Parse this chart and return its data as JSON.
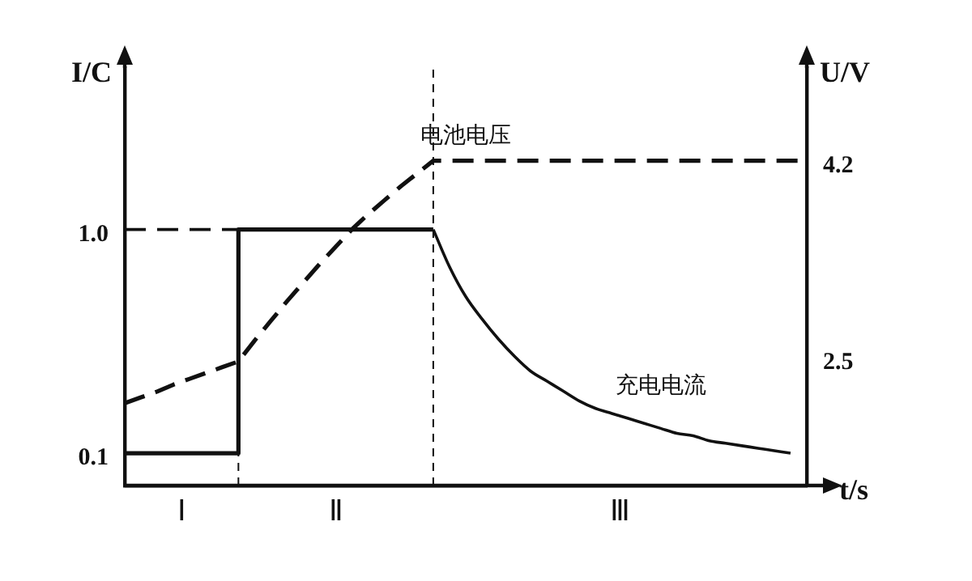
{
  "chart_data": {
    "type": "line",
    "xlabel": "t/s",
    "ylabel": "I/C",
    "y2label": "U/V",
    "categories": [
      null,
      null,
      null,
      null,
      null,
      null,
      null,
      null,
      null,
      null,
      null,
      null,
      null,
      null,
      null,
      null,
      null,
      null,
      null,
      null,
      null,
      null,
      null,
      null,
      null,
      null,
      null,
      null,
      null,
      null,
      null,
      null,
      null,
      null,
      null,
      null,
      null,
      null,
      null,
      null,
      null,
      null,
      null
    ],
    "series": [
      {
        "type": "line",
        "color": "#111111",
        "line_style": "dashed",
        "values": [
          1,
          1,
          1,
          1,
          1,
          1,
          1,
          1,
          null,
          null,
          null,
          null,
          null,
          null,
          null,
          null,
          null,
          null,
          null,
          null,
          null,
          null,
          null,
          null,
          null,
          null,
          null,
          null,
          null,
          null,
          null,
          null,
          null,
          null,
          null,
          null,
          null,
          null,
          null,
          null,
          null,
          null,
          null
        ]
      },
      {
        "type": "step",
        "color": "#111111",
        "line_style": "solid",
        "values": [
          0.1,
          0.1,
          0.1,
          0.1,
          0.1,
          0.1,
          0.1,
          1,
          1,
          1,
          1,
          1,
          1,
          1,
          1,
          1,
          1,
          1,
          1,
          1,
          null,
          null,
          null,
          null,
          null,
          null,
          null,
          null,
          null,
          null,
          null,
          null,
          null,
          null,
          null,
          null,
          null,
          null,
          null,
          null,
          null,
          null,
          null
        ]
      },
      {
        "name": "充电电流",
        "type": "line",
        "color": "#111111",
        "line_style": "solid",
        "values": [
          null,
          null,
          null,
          null,
          null,
          null,
          null,
          null,
          null,
          null,
          null,
          null,
          null,
          null,
          null,
          null,
          null,
          null,
          null,
          1,
          0.85,
          0.73,
          0.64,
          0.56,
          0.49,
          0.43,
          0.39,
          0.35,
          0.31,
          0.28,
          0.26,
          0.24,
          0.22,
          0.2,
          0.18,
          0.17,
          0.15,
          0.14,
          0.13,
          0.12,
          0.11,
          0.1,
          null
        ]
      },
      {
        "name": "电池电压",
        "type": "line",
        "axis": "y2",
        "color": "#111111",
        "line_style": "dashed",
        "values": [
          2.11,
          2.16,
          2.21,
          2.27,
          2.32,
          2.37,
          2.42,
          2.47,
          2.65,
          2.82,
          2.99,
          3.15,
          3.31,
          3.46,
          3.61,
          3.74,
          3.86,
          3.98,
          4.09,
          4.2,
          4.2,
          4.2,
          4.2,
          4.2,
          4.2,
          4.2,
          4.2,
          4.2,
          4.2,
          4.2,
          4.2,
          4.2,
          4.2,
          4.2,
          4.2,
          4.2,
          4.2,
          4.2,
          4.2,
          4.2,
          4.2,
          4.2,
          4.2
        ]
      }
    ],
    "ylim": [
      -0.03,
      1.65
    ],
    "yticks": [
      0.1,
      {
        "value": 1,
        "label": "1.0"
      }
    ],
    "y2lim": [
      1.4,
      5.0
    ],
    "y2ticks": [
      2.5,
      4.2
    ],
    "annotations": [
      "Ⅰ",
      "Ⅱ",
      "Ⅲ"
    ],
    "legend": false,
    "grid": false,
    "marker": "none"
  }
}
